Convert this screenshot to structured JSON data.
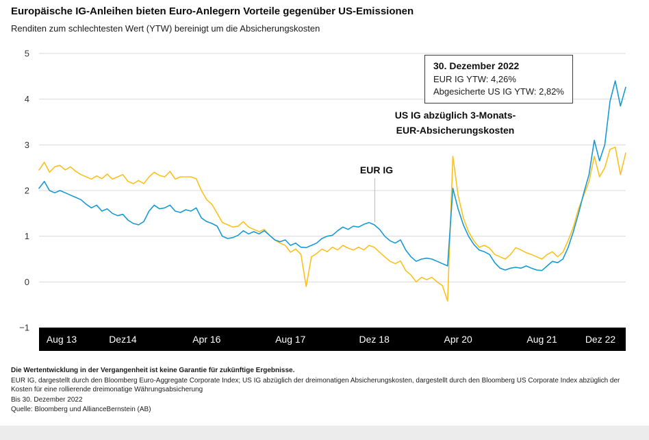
{
  "title": "Europäische IG-Anleihen bieten Euro-Anlegern Vorteile gegenüber US-Emissionen",
  "subtitle": "Renditen zum schlechtesten Wert (YTW) bereinigt um die Absicherungskosten",
  "annotation_box": {
    "date": "30. Dezember 2022",
    "line1": "EUR IG YTW: 4,26%",
    "line2": "Abgesicherte US IG YTW: 2,82%"
  },
  "labels": {
    "us_ig": "US IG abzüglich 3-Monats-\nEUR-Absicherungskosten",
    "eur_ig": "EUR IG"
  },
  "footer": {
    "disclaimer": "Die Wertentwicklung in der Vergangenheit ist keine Garantie für zukünftige Ergebnisse.",
    "description": "EUR IG, dargestellt durch den Bloomberg Euro-Aggregate Corporate Index; US IG abzüglich der dreimonatigen Absicherungskosten, dargestellt durch den Bloomberg US Corporate Index abzüglich der Kosten für eine rollierende dreimonatige Währungsabsicherung",
    "as_of": "Bis 30. Dezember 2022",
    "source": "Quelle: Bloomberg und AllianceBernstein (AB)"
  },
  "chart_data": {
    "type": "line",
    "title": "Renditen zum schlechtesten Wert (YTW) bereinigt um die Absicherungskosten",
    "ylim": [
      -1,
      5
    ],
    "y_ticks": [
      5,
      4,
      3,
      2,
      1,
      0,
      -1
    ],
    "y_tick_labels": [
      "5",
      "4",
      "3",
      "2",
      "1",
      "0",
      "−1"
    ],
    "x_ticks": [
      "Aug 13",
      "Dez14",
      "Apr 16",
      "Aug 17",
      "Dez 18",
      "Apr 20",
      "Aug 21",
      "Dez 22"
    ],
    "x_start": "Aug 2013",
    "x_end": "Dez 2022",
    "grid": "horizontal",
    "colors": {
      "eur_ig": "#1499d6",
      "us_ig_hedged": "#fdc01a"
    },
    "series": [
      {
        "name": "US IG abzüglich 3-Monats-EUR-Absicherungskosten",
        "color": "#fdc01a",
        "values": [
          2.45,
          2.62,
          2.4,
          2.52,
          2.55,
          2.45,
          2.52,
          2.42,
          2.35,
          2.3,
          2.25,
          2.32,
          2.26,
          2.36,
          2.25,
          2.3,
          2.35,
          2.2,
          2.15,
          2.22,
          2.15,
          2.3,
          2.4,
          2.33,
          2.3,
          2.42,
          2.25,
          2.3,
          2.3,
          2.3,
          2.26,
          2.0,
          1.8,
          1.7,
          1.5,
          1.3,
          1.25,
          1.2,
          1.22,
          1.32,
          1.2,
          1.15,
          1.1,
          1.15,
          1.02,
          0.92,
          0.85,
          0.8,
          0.65,
          0.72,
          0.6,
          -0.1,
          0.55,
          0.62,
          0.72,
          0.66,
          0.76,
          0.7,
          0.8,
          0.74,
          0.7,
          0.76,
          0.7,
          0.8,
          0.76,
          0.65,
          0.55,
          0.45,
          0.4,
          0.46,
          0.25,
          0.15,
          0.0,
          0.1,
          0.05,
          0.1,
          0.0,
          -0.08,
          -0.42,
          2.75,
          1.9,
          1.4,
          1.1,
          0.9,
          0.76,
          0.8,
          0.74,
          0.6,
          0.55,
          0.5,
          0.6,
          0.75,
          0.7,
          0.64,
          0.6,
          0.55,
          0.5,
          0.6,
          0.66,
          0.55,
          0.65,
          0.9,
          1.2,
          1.6,
          1.9,
          2.2,
          2.75,
          2.3,
          2.5,
          2.9,
          2.95,
          2.35,
          2.82
        ]
      },
      {
        "name": "EUR IG",
        "color": "#1499d6",
        "values": [
          2.05,
          2.2,
          2.0,
          1.95,
          2.0,
          1.95,
          1.9,
          1.85,
          1.8,
          1.7,
          1.62,
          1.68,
          1.55,
          1.6,
          1.5,
          1.45,
          1.48,
          1.35,
          1.28,
          1.25,
          1.32,
          1.55,
          1.68,
          1.6,
          1.62,
          1.68,
          1.55,
          1.52,
          1.58,
          1.55,
          1.62,
          1.4,
          1.32,
          1.28,
          1.22,
          1.0,
          0.95,
          0.97,
          1.02,
          1.12,
          1.05,
          1.1,
          1.05,
          1.12,
          1.02,
          0.92,
          0.88,
          0.92,
          0.8,
          0.85,
          0.76,
          0.75,
          0.8,
          0.85,
          0.95,
          1.0,
          1.02,
          1.12,
          1.2,
          1.15,
          1.22,
          1.2,
          1.26,
          1.3,
          1.25,
          1.15,
          1.0,
          0.9,
          0.85,
          0.92,
          0.7,
          0.55,
          0.45,
          0.5,
          0.52,
          0.5,
          0.45,
          0.4,
          0.35,
          2.05,
          1.6,
          1.25,
          1.0,
          0.82,
          0.7,
          0.66,
          0.6,
          0.42,
          0.3,
          0.26,
          0.3,
          0.32,
          0.3,
          0.35,
          0.3,
          0.26,
          0.25,
          0.35,
          0.45,
          0.42,
          0.5,
          0.75,
          1.1,
          1.5,
          1.95,
          2.35,
          3.1,
          2.65,
          3.0,
          3.95,
          4.4,
          3.85,
          4.26
        ]
      }
    ],
    "annotations": [
      {
        "text": "30. Dezember 2022 — EUR IG YTW: 4,26%; Abgesicherte US IG YTW: 2,82%"
      }
    ]
  }
}
